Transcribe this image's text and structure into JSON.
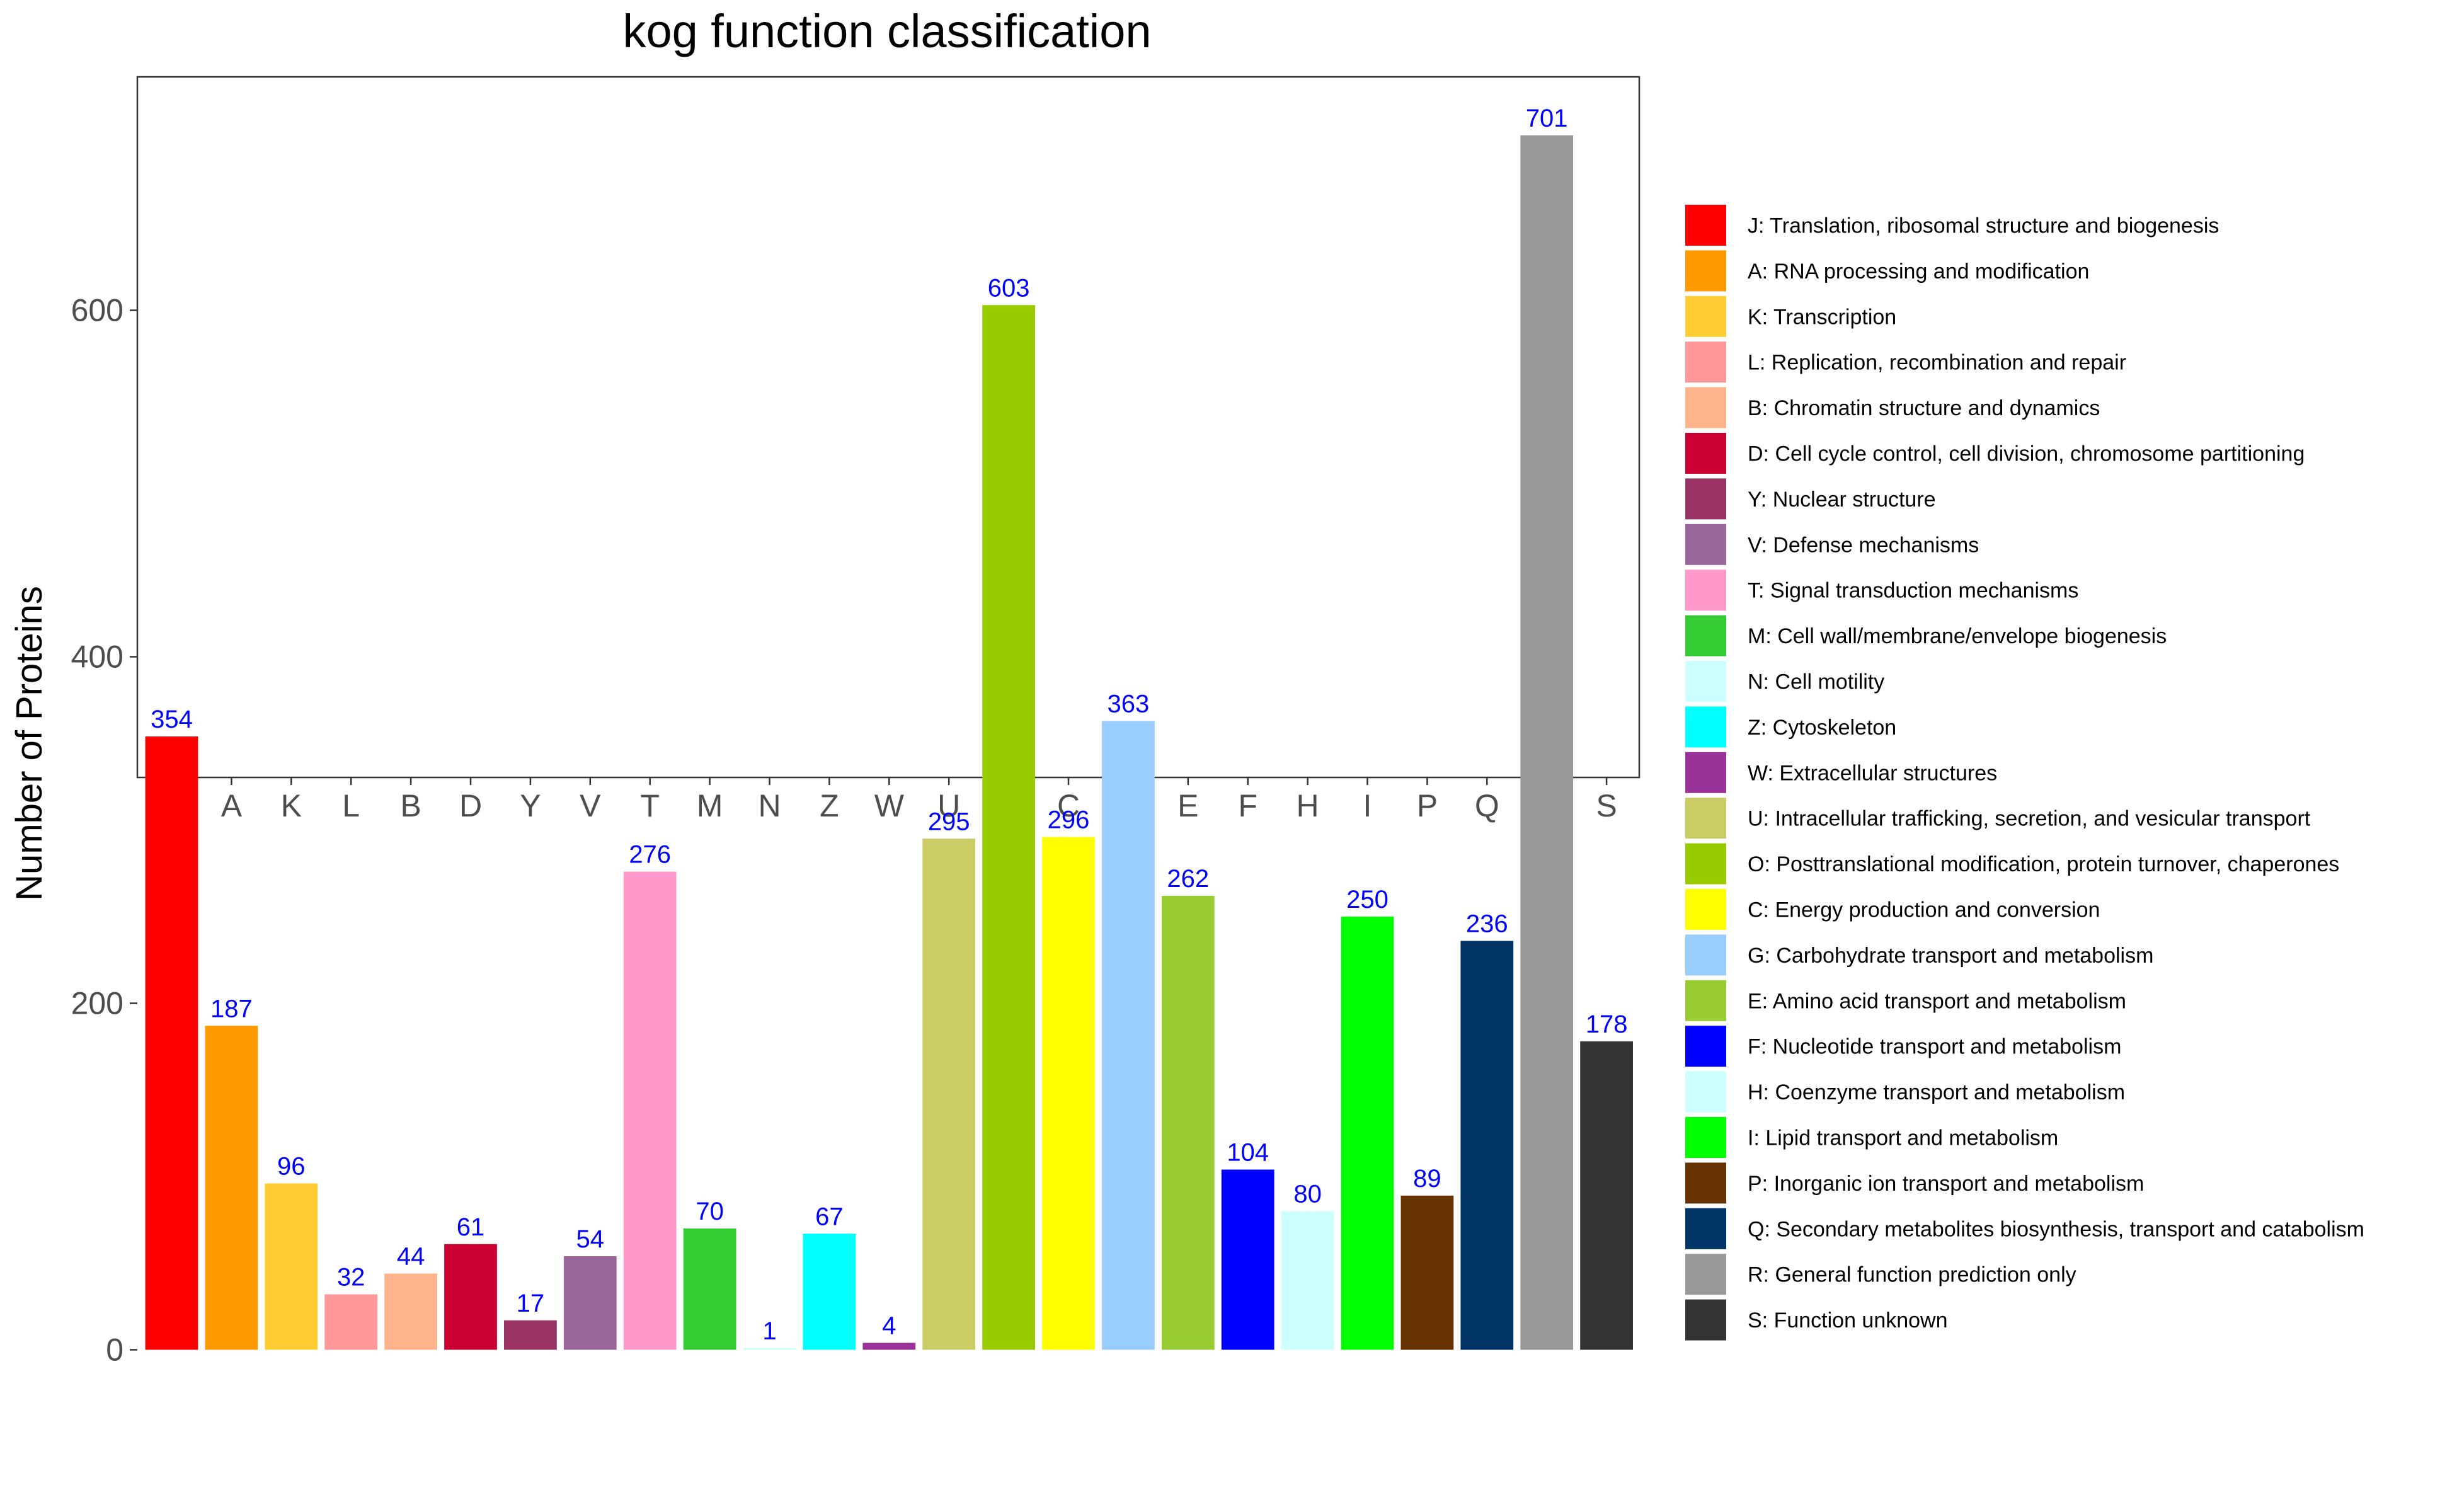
{
  "chart_data": {
    "type": "bar",
    "title": "kog function classification",
    "xlabel": "",
    "ylabel": "Number of Proteins",
    "ylim": [
      -35,
      736
    ],
    "yticks": [
      0,
      200,
      400,
      600
    ],
    "grid": false,
    "legend_position": "right",
    "categories": [
      "J",
      "A",
      "K",
      "L",
      "B",
      "D",
      "Y",
      "V",
      "T",
      "M",
      "N",
      "Z",
      "W",
      "U",
      "O",
      "C",
      "G",
      "E",
      "F",
      "H",
      "I",
      "P",
      "Q",
      "R",
      "S"
    ],
    "values": [
      354,
      187,
      96,
      32,
      44,
      61,
      17,
      54,
      276,
      70,
      1,
      67,
      4,
      295,
      603,
      296,
      363,
      262,
      104,
      80,
      250,
      89,
      236,
      701,
      178
    ],
    "colors": [
      "#FF0000",
      "#FF9900",
      "#FFCC33",
      "#FF9999",
      "#FFB38A",
      "#CC0033",
      "#993366",
      "#996699",
      "#FF99CC",
      "#33CC33",
      "#CCFFFF",
      "#00FFFF",
      "#993399",
      "#CCCC66",
      "#99CC00",
      "#FFFF00",
      "#99CCFF",
      "#99CC33",
      "#0000FF",
      "#CCFFFF",
      "#00FF00",
      "#663300",
      "#003366",
      "#999999",
      "#333333"
    ],
    "legend": [
      "J: Translation, ribosomal structure and biogenesis",
      "A: RNA processing and modification",
      "K: Transcription",
      "L: Replication, recombination and repair",
      "B: Chromatin structure and dynamics",
      "D: Cell cycle control, cell division, chromosome partitioning",
      "Y: Nuclear structure",
      "V: Defense mechanisms",
      "T: Signal transduction mechanisms",
      "M: Cell wall/membrane/envelope biogenesis",
      "N: Cell motility",
      "Z: Cytoskeleton",
      "W: Extracellular structures",
      "U: Intracellular trafficking, secretion, and vesicular transport",
      "O: Posttranslational modification, protein turnover, chaperones",
      "C: Energy production and conversion",
      "G: Carbohydrate transport and metabolism",
      "E: Amino acid transport and metabolism",
      "F: Nucleotide transport and metabolism",
      "H: Coenzyme transport and metabolism",
      "I: Lipid transport and metabolism",
      "P: Inorganic ion transport and metabolism",
      "Q: Secondary metabolites biosynthesis, transport and catabolism",
      "R: General function prediction only",
      "S: Function unknown"
    ]
  }
}
